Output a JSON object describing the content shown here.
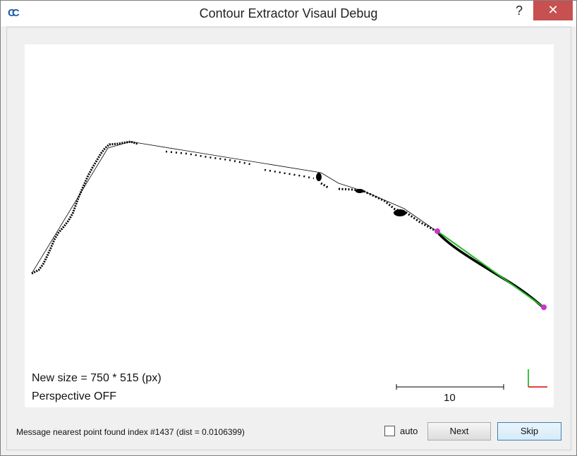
{
  "window": {
    "title": "Contour Extractor Visaul Debug",
    "app_icon_text": "CC",
    "help_symbol": "?",
    "close_symbol": "✕"
  },
  "viewport": {
    "size_text": "New size = 750 * 515 (px)",
    "perspective_text": "Perspective OFF",
    "scale_label": "10",
    "colors": {
      "points": "#000000",
      "segment": "#22bb22",
      "endpoints": "#cc33cc",
      "axis_x": "#dd0000",
      "axis_y": "#00aa00"
    }
  },
  "bottom_bar": {
    "message": "Message  nearest point found index #1437 (dist = 0.0106399)",
    "auto_label": "auto",
    "auto_checked": false,
    "next_label": "Next",
    "skip_label": "Skip"
  }
}
